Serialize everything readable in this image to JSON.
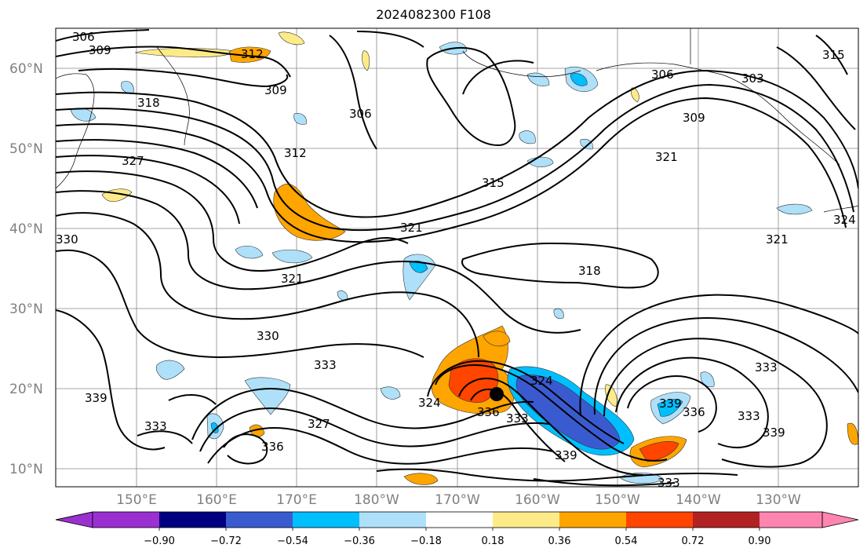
{
  "title": "2024082300 F108",
  "map": {
    "lat_labels": [
      "60°N",
      "50°N",
      "40°N",
      "30°N",
      "20°N",
      "10°N"
    ],
    "lon_labels": [
      "150°E",
      "160°E",
      "170°E",
      "180°W",
      "170°W",
      "160°W",
      "150°W",
      "140°W",
      "130°W"
    ],
    "contour_labels": [
      "306",
      "309",
      "312",
      "309",
      "318",
      "327",
      "312",
      "306",
      "315",
      "321",
      "306",
      "309",
      "303",
      "315",
      "321",
      "321",
      "324",
      "330",
      "321",
      "318",
      "330",
      "333",
      "333",
      "339",
      "333",
      "327",
      "336",
      "324",
      "324",
      "336",
      "333",
      "339",
      "339",
      "336",
      "333",
      "333",
      "339"
    ],
    "center_marker": "storm-center"
  },
  "colorbar": {
    "ticks": [
      "−0.90",
      "−0.72",
      "−0.54",
      "−0.36",
      "−0.18",
      "0.18",
      "0.36",
      "0.54",
      "0.72",
      "0.90"
    ],
    "colors": [
      "#9b30d0",
      "#000080",
      "#3a5bd0",
      "#00bfff",
      "#aee0fa",
      "#ffffff",
      "#fdeb8a",
      "#ffa500",
      "#ff4500",
      "#b22222",
      "#ff85b0"
    ]
  }
}
